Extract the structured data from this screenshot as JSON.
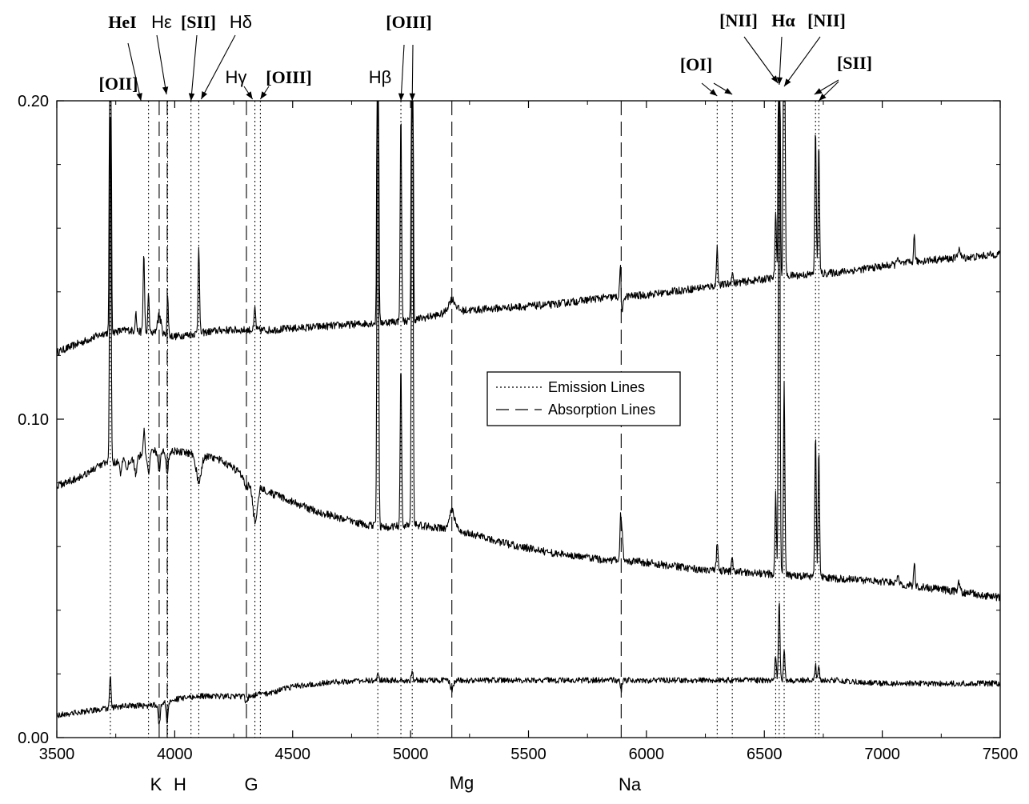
{
  "chart_data": {
    "type": "line",
    "title": "",
    "xlabel": "",
    "ylabel": "",
    "xlim": [
      3500,
      7500
    ],
    "ylim": [
      0.0,
      0.2
    ],
    "x_ticks": [
      "3500",
      "4000",
      "4500",
      "5000",
      "5500",
      "6000",
      "6500",
      "7000",
      "7500"
    ],
    "y_ticks": [
      "0.00",
      "0.10",
      "0.20"
    ],
    "grid": false,
    "legend": {
      "position": "center",
      "entries": [
        {
          "label": "Emission Lines",
          "style": "dotted"
        },
        {
          "label": "Absorption Lines",
          "style": "dashed"
        }
      ]
    },
    "emission_lines": [
      3727,
      3889,
      3970,
      4069,
      4102,
      4340,
      4363,
      4861,
      4959,
      5007,
      6300,
      6364,
      6548,
      6563,
      6584,
      6717,
      6731
    ],
    "absorption_lines": [
      3934,
      3968,
      4304,
      5175,
      5893
    ],
    "line_labels_top": [
      {
        "text": "[OII]",
        "x": 3727
      },
      {
        "text": "HeI",
        "x": 3889
      },
      {
        "text": "Hε",
        "x": 3970
      },
      {
        "text": "[SII]",
        "x": 4069
      },
      {
        "text": "Hδ",
        "x": 4102
      },
      {
        "text": "Hγ",
        "x": 4340
      },
      {
        "text": "[OIII]",
        "x": 4363
      },
      {
        "text": "Hβ",
        "x": 4861
      },
      {
        "text": "[OIII]",
        "x": 4985
      },
      {
        "text": "[OI]",
        "x": 6330
      },
      {
        "text": "[NII]",
        "x": 6548
      },
      {
        "text": "Hα",
        "x": 6563
      },
      {
        "text": "[NII]",
        "x": 6584
      },
      {
        "text": "[SII]",
        "x": 6724
      }
    ],
    "line_labels_bottom": [
      {
        "text": "K",
        "x": 3934
      },
      {
        "text": "H",
        "x": 3968
      },
      {
        "text": "G",
        "x": 4304
      },
      {
        "text": "Mg",
        "x": 5175
      },
      {
        "text": "Na",
        "x": 5893
      }
    ],
    "series": [
      {
        "continuum": [
          [
            3500,
            0.121
          ],
          [
            3600,
            0.124
          ],
          [
            3700,
            0.127
          ],
          [
            3800,
            0.128
          ],
          [
            3900,
            0.127
          ],
          [
            4000,
            0.126
          ],
          [
            4200,
            0.128
          ],
          [
            4400,
            0.128
          ],
          [
            4600,
            0.129
          ],
          [
            4800,
            0.13
          ],
          [
            5000,
            0.131
          ],
          [
            5200,
            0.134
          ],
          [
            5400,
            0.135
          ],
          [
            5600,
            0.136
          ],
          [
            5800,
            0.138
          ],
          [
            6000,
            0.139
          ],
          [
            6200,
            0.141
          ],
          [
            6400,
            0.143
          ],
          [
            6600,
            0.145
          ],
          [
            6800,
            0.146
          ],
          [
            7000,
            0.148
          ],
          [
            7200,
            0.15
          ],
          [
            7400,
            0.151
          ],
          [
            7500,
            0.152
          ]
        ],
        "features": [
          [
            3727,
            0.2,
            3
          ],
          [
            3835,
            0.006,
            3
          ],
          [
            3869,
            0.025,
            3
          ],
          [
            3889,
            0.012,
            3
          ],
          [
            3934,
            0.006,
            8
          ],
          [
            3970,
            0.012,
            3
          ],
          [
            4102,
            0.028,
            3
          ],
          [
            4340,
            0.007,
            3
          ],
          [
            4861,
            0.2,
            3
          ],
          [
            4959,
            0.065,
            3
          ],
          [
            5007,
            0.2,
            3
          ],
          [
            5175,
            0.004,
            15
          ],
          [
            5890,
            0.012,
            3
          ],
          [
            5896,
            -0.007,
            4
          ],
          [
            6300,
            0.012,
            3
          ],
          [
            6364,
            0.004,
            3
          ],
          [
            6548,
            0.02,
            3
          ],
          [
            6563,
            0.2,
            3
          ],
          [
            6584,
            0.2,
            3
          ],
          [
            6717,
            0.045,
            3
          ],
          [
            6731,
            0.04,
            3
          ],
          [
            7065,
            0.003,
            3
          ],
          [
            7136,
            0.008,
            3
          ],
          [
            7325,
            0.003,
            5
          ]
        ]
      },
      {
        "continuum": [
          [
            3500,
            0.079
          ],
          [
            3600,
            0.082
          ],
          [
            3700,
            0.086
          ],
          [
            3800,
            0.087
          ],
          [
            3900,
            0.09
          ],
          [
            4000,
            0.09
          ],
          [
            4100,
            0.089
          ],
          [
            4200,
            0.087
          ],
          [
            4300,
            0.082
          ],
          [
            4400,
            0.077
          ],
          [
            4500,
            0.074
          ],
          [
            4600,
            0.071
          ],
          [
            4700,
            0.069
          ],
          [
            4800,
            0.067
          ],
          [
            4900,
            0.066
          ],
          [
            5000,
            0.067
          ],
          [
            5100,
            0.066
          ],
          [
            5200,
            0.065
          ],
          [
            5400,
            0.061
          ],
          [
            5600,
            0.058
          ],
          [
            5800,
            0.056
          ],
          [
            6000,
            0.055
          ],
          [
            6200,
            0.053
          ],
          [
            6400,
            0.052
          ],
          [
            6600,
            0.051
          ],
          [
            6800,
            0.05
          ],
          [
            7000,
            0.049
          ],
          [
            7200,
            0.047
          ],
          [
            7400,
            0.045
          ],
          [
            7500,
            0.044
          ]
        ],
        "features": [
          [
            3727,
            0.115,
            3
          ],
          [
            3770,
            -0.004,
            4
          ],
          [
            3798,
            -0.004,
            4
          ],
          [
            3835,
            -0.005,
            5
          ],
          [
            3870,
            0.008,
            3
          ],
          [
            3889,
            -0.006,
            5
          ],
          [
            3934,
            -0.006,
            5
          ],
          [
            3968,
            -0.007,
            5
          ],
          [
            4102,
            -0.009,
            10
          ],
          [
            4304,
            -0.003,
            8
          ],
          [
            4340,
            -0.012,
            10
          ],
          [
            4861,
            0.2,
            3
          ],
          [
            4959,
            0.05,
            3
          ],
          [
            5007,
            0.2,
            3
          ],
          [
            5175,
            0.006,
            12
          ],
          [
            5890,
            0.011,
            3
          ],
          [
            5896,
            0.009,
            4
          ],
          [
            6300,
            0.009,
            3
          ],
          [
            6364,
            0.004,
            3
          ],
          [
            6548,
            0.025,
            3
          ],
          [
            6563,
            0.2,
            3
          ],
          [
            6584,
            0.06,
            3
          ],
          [
            6717,
            0.045,
            3
          ],
          [
            6731,
            0.04,
            3
          ],
          [
            7065,
            0.003,
            3
          ],
          [
            7136,
            0.008,
            3
          ],
          [
            7325,
            0.003,
            5
          ]
        ]
      },
      {
        "continuum": [
          [
            3500,
            0.007
          ],
          [
            3600,
            0.008
          ],
          [
            3700,
            0.009
          ],
          [
            3800,
            0.01
          ],
          [
            3900,
            0.01
          ],
          [
            4000,
            0.012
          ],
          [
            4100,
            0.013
          ],
          [
            4300,
            0.013
          ],
          [
            4400,
            0.014
          ],
          [
            4500,
            0.016
          ],
          [
            4600,
            0.017
          ],
          [
            4800,
            0.018
          ],
          [
            5000,
            0.018
          ],
          [
            5200,
            0.018
          ],
          [
            5400,
            0.018
          ],
          [
            5600,
            0.018
          ],
          [
            5800,
            0.018
          ],
          [
            6000,
            0.018
          ],
          [
            6200,
            0.018
          ],
          [
            6400,
            0.018
          ],
          [
            6600,
            0.018
          ],
          [
            6800,
            0.018
          ],
          [
            7000,
            0.017
          ],
          [
            7200,
            0.017
          ],
          [
            7400,
            0.017
          ],
          [
            7500,
            0.017
          ]
        ],
        "features": [
          [
            3727,
            0.01,
            3
          ],
          [
            3934,
            -0.007,
            4
          ],
          [
            3968,
            -0.007,
            4
          ],
          [
            4304,
            -0.002,
            5
          ],
          [
            4861,
            0.002,
            3
          ],
          [
            5007,
            0.003,
            3
          ],
          [
            5175,
            -0.003,
            6
          ],
          [
            5893,
            -0.003,
            4
          ],
          [
            6548,
            0.008,
            3
          ],
          [
            6563,
            0.025,
            3
          ],
          [
            6584,
            0.01,
            3
          ],
          [
            6717,
            0.005,
            3
          ],
          [
            6731,
            0.004,
            3
          ]
        ]
      }
    ]
  }
}
